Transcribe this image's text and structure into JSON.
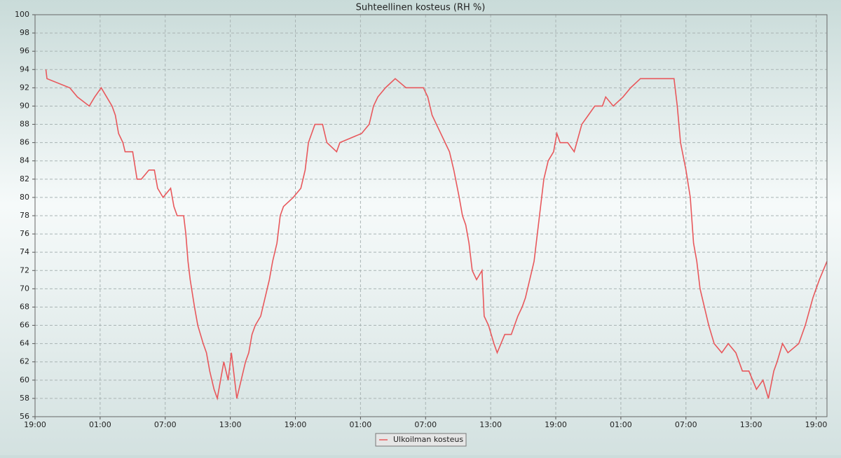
{
  "chart_data": {
    "type": "line",
    "title": "Suhteellinen kosteus (RH %)",
    "x": [
      1.0,
      1.1,
      3.2,
      3.9,
      5.0,
      5.5,
      6.1,
      6.6,
      7.1,
      7.4,
      7.7,
      8.1,
      8.3,
      9.0,
      9.4,
      9.8,
      10.5,
      11.0,
      11.3,
      11.8,
      12.5,
      12.8,
      13.1,
      13.7,
      13.9,
      14.1,
      14.3,
      14.7,
      15.0,
      15.5,
      15.8,
      16.1,
      16.5,
      16.8,
      17.1,
      17.4,
      17.8,
      18.1,
      18.4,
      18.6,
      19.0,
      19.4,
      19.7,
      20.0,
      20.3,
      20.8,
      21.2,
      21.6,
      21.9,
      22.3,
      22.6,
      22.9,
      23.8,
      24.5,
      24.9,
      25.2,
      25.5,
      25.8,
      26.5,
      26.9,
      27.8,
      28.1,
      30.1,
      30.8,
      31.2,
      31.6,
      32.3,
      33.2,
      34.2,
      35.8,
      36.2,
      36.6,
      37.0,
      37.4,
      37.8,
      38.2,
      38.6,
      39.1,
      39.4,
      39.7,
      40.0,
      40.3,
      40.7,
      41.2,
      41.4,
      41.8,
      42.3,
      42.6,
      43.3,
      43.9,
      44.5,
      44.9,
      45.2,
      45.6,
      46.0,
      46.3,
      46.6,
      46.9,
      47.3,
      47.8,
      48.1,
      48.4,
      49.1,
      49.7,
      50.4,
      51.0,
      51.6,
      52.3,
      52.6,
      53.3,
      54.2,
      54.9,
      55.8,
      56.8,
      58.1,
      58.9,
      59.2,
      59.5,
      60.0,
      60.4,
      60.7,
      61.0,
      61.3,
      61.7,
      62.1,
      62.6,
      63.3,
      63.9,
      64.6,
      65.2,
      65.8,
      66.5,
      67.1,
      67.6,
      68.1,
      68.4,
      68.9,
      69.4,
      70.4,
      71.0,
      71.7,
      72.3,
      73.0
    ],
    "series": [
      {
        "name": "Ulkoilman kosteus",
        "color": "#e8585c",
        "values": [
          94,
          93,
          92,
          91,
          90,
          91,
          92,
          91,
          90,
          89,
          87,
          86,
          85,
          85,
          82,
          82,
          83,
          83,
          81,
          80,
          81,
          79,
          78,
          78,
          76,
          73,
          71,
          68,
          66,
          64,
          63,
          61,
          59,
          58,
          60,
          62,
          60,
          63,
          60,
          58,
          60,
          62,
          63,
          65,
          66,
          67,
          69,
          71,
          73,
          75,
          78,
          79,
          80,
          81,
          83,
          86,
          87,
          88,
          88,
          86,
          85,
          86,
          87,
          88,
          90,
          91,
          92,
          93,
          92,
          92,
          91,
          89,
          88,
          87,
          86,
          85,
          83,
          80,
          78,
          77,
          75,
          72,
          71,
          72,
          67,
          66,
          64,
          63,
          65,
          65,
          67,
          68,
          69,
          71,
          73,
          76,
          79,
          82,
          84,
          85,
          87,
          86,
          86,
          85,
          88,
          89,
          90,
          90,
          91,
          90,
          91,
          92,
          93,
          93,
          93,
          93,
          90,
          86,
          83,
          80,
          75,
          73,
          70,
          68,
          66,
          64,
          63,
          64,
          63,
          61,
          61,
          59,
          60,
          58,
          61,
          62,
          64,
          63,
          64,
          66,
          69,
          71,
          73
        ]
      }
    ],
    "xlim": [
      0,
      73
    ],
    "xticks": [
      {
        "value": 0,
        "label": "19:00"
      },
      {
        "value": 6,
        "label": "01:00"
      },
      {
        "value": 12,
        "label": "07:00"
      },
      {
        "value": 18,
        "label": "13:00"
      },
      {
        "value": 24,
        "label": "19:00"
      },
      {
        "value": 30,
        "label": "01:00"
      },
      {
        "value": 36,
        "label": "07:00"
      },
      {
        "value": 42,
        "label": "13:00"
      },
      {
        "value": 48,
        "label": "19:00"
      },
      {
        "value": 54,
        "label": "01:00"
      },
      {
        "value": 60,
        "label": "07:00"
      },
      {
        "value": 66,
        "label": "13:00"
      },
      {
        "value": 72,
        "label": "19:00"
      }
    ],
    "ylim": [
      56,
      100
    ],
    "yticks": [
      56,
      58,
      60,
      62,
      64,
      66,
      68,
      70,
      72,
      74,
      76,
      78,
      80,
      82,
      84,
      86,
      88,
      90,
      92,
      94,
      96,
      98,
      100
    ],
    "grid": true,
    "legend": "bottom"
  }
}
